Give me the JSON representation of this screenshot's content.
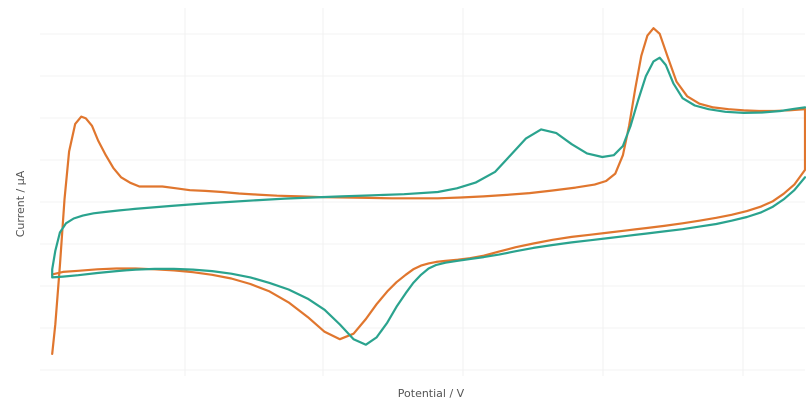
{
  "chart_data": {
    "type": "line",
    "xlabel": "Potential / V",
    "ylabel": "Current / µA",
    "xlim": [
      0,
      100
    ],
    "ylim": [
      0,
      100
    ],
    "grid": true,
    "legend": "none",
    "series": [
      {
        "color": "#e0762e",
        "x": [
          1.6,
          2.0,
          2.6,
          3.2,
          3.8,
          4.6,
          5.4,
          6.0,
          6.8,
          7.6,
          8.6,
          9.6,
          10.6,
          11.8,
          13.0,
          14.4,
          16.0,
          17.8,
          19.6,
          21.6,
          23.8,
          26.0,
          28.4,
          31.0,
          34.0,
          37.0,
          40.0,
          43.0,
          46.0,
          49.0,
          52.0,
          55.0,
          58.0,
          61.0,
          64.0,
          67.0,
          70.0,
          72.5,
          74.0,
          75.2,
          76.2,
          77.0,
          77.8,
          78.6,
          79.4,
          80.2,
          81.0,
          82.0,
          83.2,
          84.6,
          86.2,
          88.0,
          90.0,
          92.0,
          94.0,
          96.0,
          98.0,
          100.0,
          100.0,
          98.6,
          97.2,
          95.8,
          94.2,
          92.4,
          90.4,
          88.4,
          86.2,
          84.0,
          81.6,
          79.2,
          76.8,
          74.4,
          72.0,
          69.5,
          67.0,
          64.5,
          62.2,
          60.0,
          58.0,
          56.2,
          54.6,
          53.0,
          51.8,
          50.8,
          49.8,
          48.8,
          47.8,
          46.6,
          45.4,
          44.0,
          42.6,
          41.0,
          39.2,
          37.2,
          35.0,
          32.5,
          30.0,
          27.5,
          25.0,
          22.5,
          20.0,
          17.5,
          15.0,
          12.5,
          10.0,
          7.5,
          5.0,
          3.0,
          1.6
        ],
        "y": [
          6.0,
          14.0,
          30.0,
          48.0,
          61.0,
          68.5,
          70.5,
          70.0,
          68.0,
          64.0,
          60.0,
          56.5,
          54.0,
          52.5,
          51.5,
          51.5,
          51.5,
          51.0,
          50.5,
          50.3,
          50.0,
          49.6,
          49.3,
          49.0,
          48.8,
          48.6,
          48.5,
          48.4,
          48.3,
          48.3,
          48.3,
          48.5,
          48.8,
          49.2,
          49.7,
          50.4,
          51.2,
          52.0,
          53.0,
          55.0,
          60.0,
          68.0,
          78.0,
          87.0,
          92.5,
          94.5,
          93.0,
          87.0,
          80.0,
          76.0,
          74.0,
          73.0,
          72.5,
          72.2,
          72.0,
          72.0,
          72.2,
          72.5,
          56.0,
          52.0,
          49.5,
          47.5,
          46.0,
          44.8,
          43.8,
          43.0,
          42.2,
          41.5,
          40.8,
          40.2,
          39.6,
          39.0,
          38.4,
          37.8,
          37.0,
          36.0,
          35.0,
          33.8,
          32.7,
          32.0,
          31.6,
          31.3,
          31.0,
          30.6,
          30.0,
          29.0,
          27.5,
          25.5,
          23.0,
          19.5,
          15.5,
          11.5,
          10.0,
          12.0,
          16.0,
          20.0,
          23.0,
          25.0,
          26.5,
          27.5,
          28.2,
          28.7,
          29.0,
          29.2,
          29.2,
          29.0,
          28.6,
          28.3,
          27.6
        ]
      },
      {
        "color": "#2aa38e",
        "x": [
          100.0,
          98.6,
          97.2,
          95.8,
          94.2,
          92.4,
          90.4,
          88.4,
          86.2,
          84.0,
          81.6,
          79.2,
          76.8,
          74.4,
          72.0,
          69.5,
          67.0,
          64.5,
          62.2,
          60.0,
          58.0,
          56.2,
          54.6,
          53.0,
          51.8,
          50.8,
          49.8,
          48.8,
          47.8,
          46.6,
          45.4,
          44.0,
          42.6,
          41.0,
          39.2,
          37.2,
          35.0,
          32.5,
          30.0,
          27.5,
          25.0,
          22.5,
          20.0,
          17.5,
          15.0,
          12.5,
          10.0,
          7.5,
          5.0,
          3.0,
          1.6,
          1.6,
          2.0,
          2.6,
          3.4,
          4.4,
          5.6,
          7.0,
          8.6,
          10.4,
          12.4,
          14.6,
          17.0,
          19.6,
          22.4,
          25.4,
          28.6,
          32.0,
          35.6,
          39.4,
          43.4,
          47.6,
          52.0,
          54.5,
          57.0,
          59.5,
          61.5,
          63.5,
          65.5,
          67.5,
          69.5,
          71.5,
          73.5,
          75.0,
          76.2,
          77.2,
          78.2,
          79.2,
          80.2,
          81.0,
          81.8,
          82.8,
          84.0,
          85.6,
          87.4,
          89.6,
          92.0,
          94.4,
          96.8,
          98.6,
          100.0
        ],
        "y": [
          54.0,
          50.5,
          48.0,
          46.0,
          44.4,
          43.2,
          42.2,
          41.3,
          40.6,
          39.9,
          39.3,
          38.7,
          38.1,
          37.5,
          36.9,
          36.3,
          35.6,
          34.8,
          33.9,
          33.0,
          32.3,
          31.8,
          31.3,
          30.8,
          30.2,
          29.2,
          27.5,
          25.3,
          22.5,
          18.8,
          14.5,
          10.5,
          8.5,
          10.0,
          14.0,
          18.0,
          21.0,
          23.5,
          25.3,
          26.8,
          27.8,
          28.5,
          28.9,
          29.1,
          29.1,
          28.9,
          28.5,
          28.0,
          27.4,
          27.0,
          26.8,
          29.0,
          34.0,
          39.0,
          41.5,
          42.8,
          43.6,
          44.2,
          44.6,
          45.0,
          45.4,
          45.8,
          46.2,
          46.6,
          47.0,
          47.4,
          47.8,
          48.2,
          48.5,
          48.8,
          49.1,
          49.4,
          50.0,
          51.0,
          52.6,
          55.5,
          60.0,
          64.5,
          67.0,
          66.0,
          63.0,
          60.5,
          59.5,
          60.0,
          62.5,
          68.0,
          75.0,
          81.5,
          85.5,
          86.5,
          84.5,
          79.5,
          75.5,
          73.5,
          72.5,
          71.8,
          71.5,
          71.6,
          72.0,
          72.6,
          73.0
        ]
      }
    ]
  }
}
